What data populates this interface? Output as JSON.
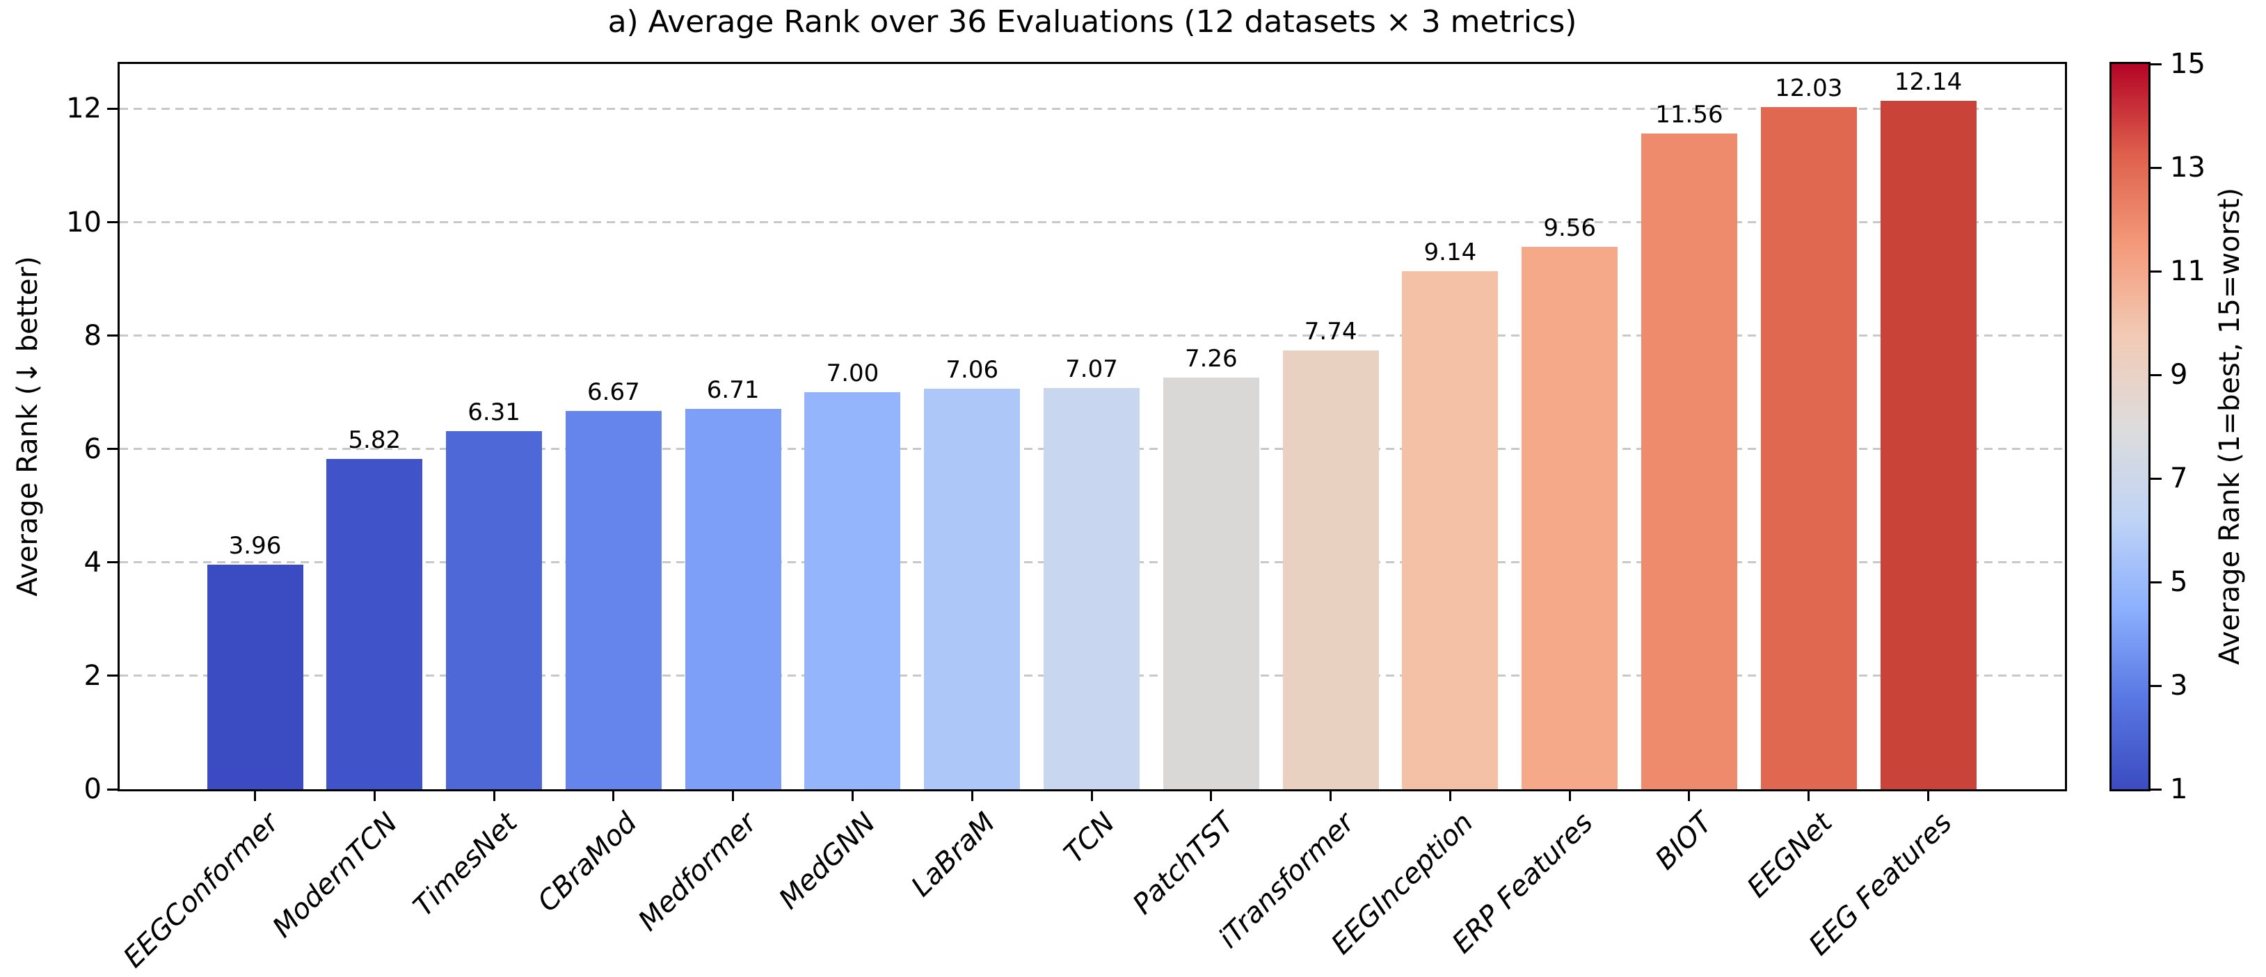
{
  "title": "a) Average Rank over 36 Evaluations (12 datasets × 3 metrics)",
  "chart_data": {
    "type": "bar",
    "title": "a) Average Rank over 36 Evaluations (12 datasets × 3 metrics)",
    "xlabel": "",
    "ylabel": "Average Rank (↓ better)",
    "ylim": [
      0,
      12.79
    ],
    "yticks": [
      0,
      2,
      4,
      6,
      8,
      10,
      12
    ],
    "grid": "horizontal dashed",
    "gridline_color": "#c8c8c8",
    "categories": [
      "EEGConformer",
      "ModernTCN",
      "TimesNet",
      "CBraMod",
      "Medformer",
      "MedGNN",
      "LaBraM",
      "TCN",
      "PatchTST",
      "iTransformer",
      "EEGInception",
      "ERP Features",
      "BIOT",
      "EEGNet",
      "EEG Features"
    ],
    "values": [
      3.96,
      5.82,
      6.31,
      6.67,
      6.71,
      7.0,
      7.06,
      7.07,
      7.26,
      7.74,
      9.14,
      9.56,
      11.56,
      12.03,
      12.14
    ],
    "bar_value_labels": [
      "3.96",
      "5.82",
      "6.31",
      "6.67",
      "6.71",
      "7.00",
      "7.06",
      "7.07",
      "7.26",
      "7.74",
      "9.14",
      "9.56",
      "11.56",
      "12.03",
      "12.14"
    ],
    "bar_colors": [
      "#3b4cc2",
      "#4053c8",
      "#4f68d8",
      "#6585ec",
      "#7e9ff7",
      "#94b5fb",
      "#adc7f9",
      "#c8d6ef",
      "#dad8d6",
      "#e9d1c1",
      "#f5c1a6",
      "#f6a988",
      "#ef8b6d",
      "#e16850",
      "#c94338"
    ],
    "colorbar": {
      "label": "Average Rank (1=best, 15=worst)",
      "min": 1,
      "max": 15,
      "ticks": [
        1,
        3,
        5,
        7,
        9,
        11,
        13,
        15
      ],
      "cmap": "coolwarm",
      "gradient_stops_bottom_to_top": [
        "#3b4cc0",
        "#5977e3",
        "#8db0fe",
        "#c0d4f5",
        "#dddcdc",
        "#f2cab5",
        "#f49a7b",
        "#de604d",
        "#b40426"
      ]
    }
  }
}
